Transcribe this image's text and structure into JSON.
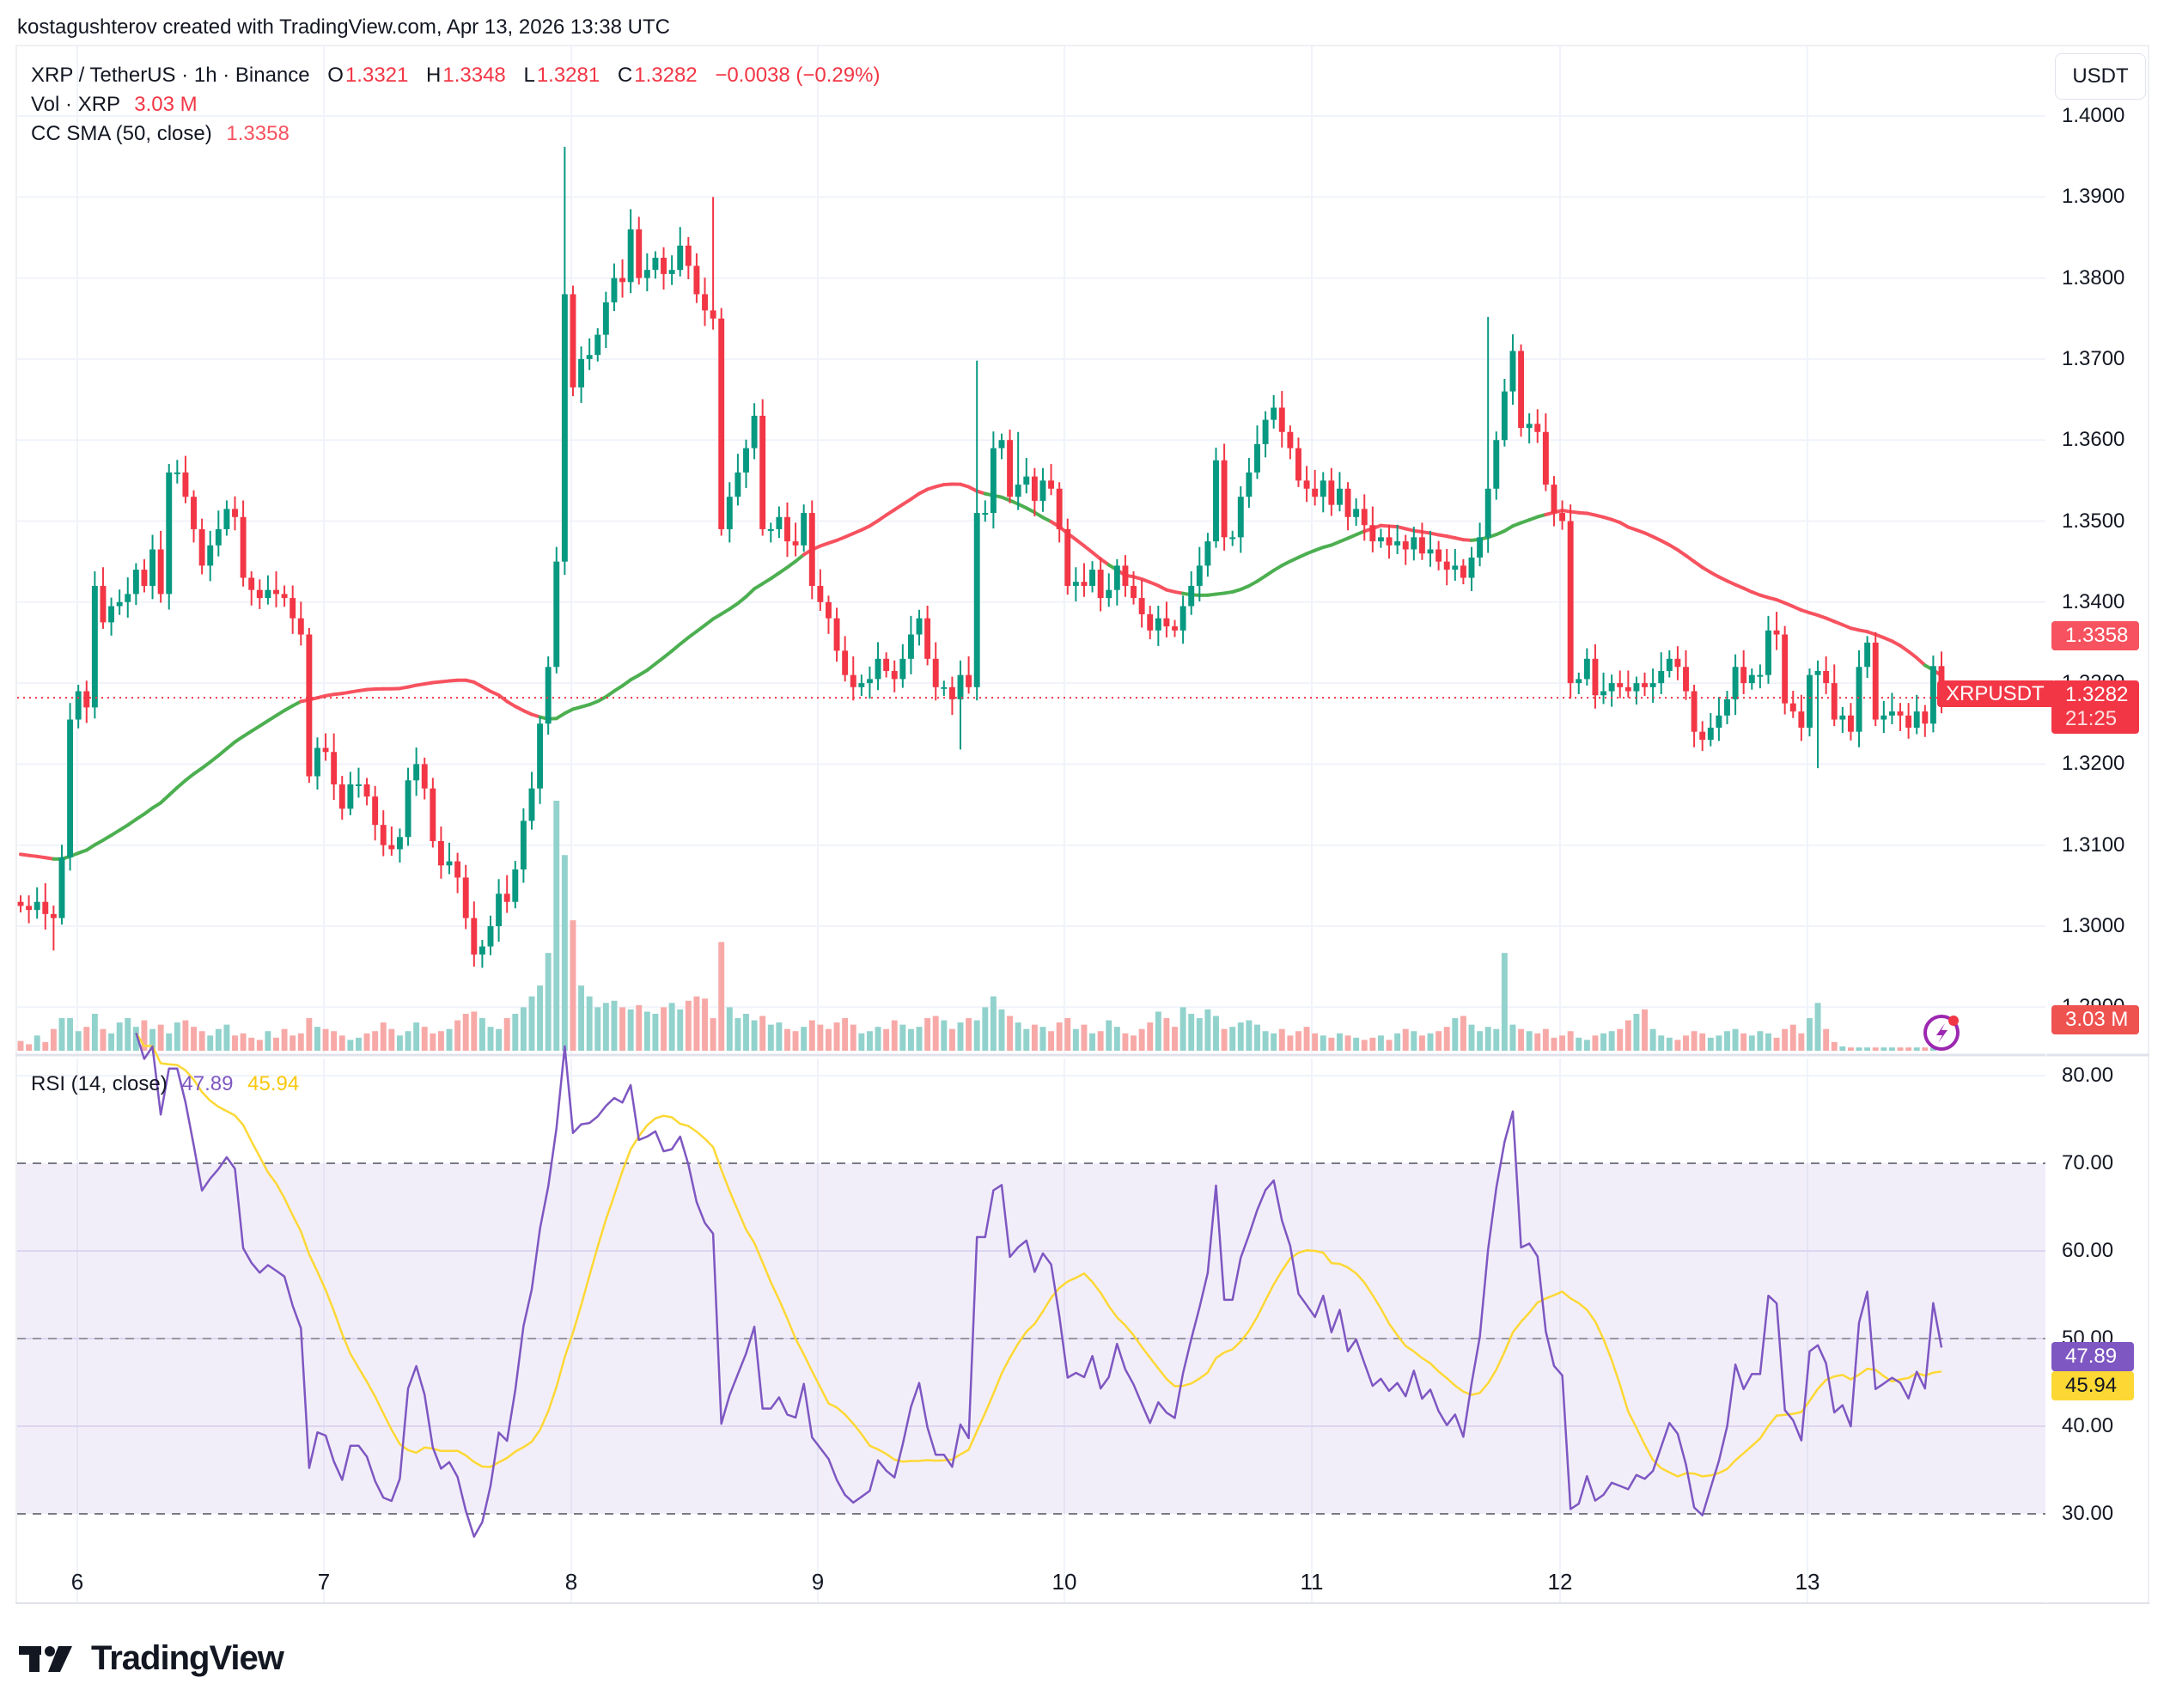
{
  "credit": "kostagushterov created with TradingView.com, Apr 13, 2026 13:38 UTC",
  "legend": {
    "symbol": "XRP / TetherUS · 1h · Binance",
    "o_label": "O",
    "o": "1.3321",
    "h_label": "H",
    "h": "1.3348",
    "l_label": "L",
    "l": "1.3281",
    "c_label": "C",
    "c": "1.3282",
    "change": "−0.0038 (−0.29%)",
    "vol_label": "Vol · XRP",
    "vol": "3.03 M",
    "sma_label": "CC SMA (50, close)",
    "sma": "1.3358",
    "rsi_label": "RSI (14, close)",
    "rsi": "47.89",
    "rsi_ma": "45.94"
  },
  "currency_button": "USDT",
  "price_axis": [
    "1.4000",
    "1.3900",
    "1.3800",
    "1.3700",
    "1.3600",
    "1.3500",
    "1.3400",
    "1.3300",
    "1.3200",
    "1.3100",
    "1.3000",
    "1.2900"
  ],
  "rsi_axis": [
    "80.00",
    "70.00",
    "60.00",
    "50.00",
    "40.00",
    "30.00"
  ],
  "tags": {
    "sma": "1.3358",
    "symbol": "XRPUSDT",
    "last_price": "1.3282",
    "countdown": "21:25",
    "volume": "3.03 M",
    "rsi": "47.89",
    "rsi_ma": "45.94"
  },
  "time_axis": [
    "6",
    "7",
    "8",
    "9",
    "10",
    "11",
    "12",
    "13"
  ],
  "logo_text": "TradingView",
  "colors": {
    "up": "#089981",
    "down": "#f23645",
    "vol_up": "#92d2cc",
    "vol_down": "#f7a9a7",
    "sma_bull": "#4caf50",
    "sma_bear": "#f7525f",
    "rsi": "#7e57c2",
    "rsi_ma": "#fdd835",
    "rsi_band": "#7e57c2"
  },
  "chart_data": {
    "type": "candlestick",
    "title": "XRP / TetherUS · 1h · Binance",
    "ylabel": "USDT",
    "ylim": [
      1.2885,
      1.4015
    ],
    "x_ticks": [
      "6",
      "7",
      "8",
      "9",
      "10",
      "11",
      "12",
      "13"
    ],
    "grid": true,
    "first_open": 1.303,
    "closes": [
      1.3025,
      1.302,
      1.303,
      1.3015,
      1.301,
      1.3085,
      1.3255,
      1.329,
      1.327,
      1.342,
      1.3375,
      1.3395,
      1.34,
      1.341,
      1.344,
      1.342,
      1.3465,
      1.341,
      1.356,
      1.356,
      1.353,
      1.349,
      1.3445,
      1.347,
      1.349,
      1.3515,
      1.3505,
      1.343,
      1.3415,
      1.3405,
      1.3415,
      1.341,
      1.3405,
      1.338,
      1.336,
      1.3185,
      1.322,
      1.3215,
      1.3175,
      1.3145,
      1.3175,
      1.3175,
      1.316,
      1.3125,
      1.31,
      1.3095,
      1.311,
      1.318,
      1.32,
      1.317,
      1.3105,
      1.3075,
      1.308,
      1.306,
      1.301,
      1.2965,
      1.2975,
      1.3,
      1.304,
      1.303,
      1.307,
      1.313,
      1.317,
      1.325,
      1.332,
      1.345,
      1.378,
      1.3665,
      1.37,
      1.3705,
      1.373,
      1.377,
      1.38,
      1.3795,
      1.386,
      1.38,
      1.381,
      1.3825,
      1.3805,
      1.381,
      1.384,
      1.3815,
      1.378,
      1.376,
      1.375,
      1.349,
      1.353,
      1.356,
      1.359,
      1.363,
      1.349,
      1.349,
      1.3505,
      1.3475,
      1.347,
      1.351,
      1.342,
      1.34,
      1.338,
      1.334,
      1.331,
      1.3295,
      1.33,
      1.3305,
      1.333,
      1.3315,
      1.3305,
      1.333,
      1.336,
      1.338,
      1.333,
      1.3295,
      1.3295,
      1.328,
      1.331,
      1.3295,
      1.351,
      1.351,
      1.359,
      1.36,
      1.353,
      1.3545,
      1.3555,
      1.3525,
      1.355,
      1.354,
      1.349,
      1.342,
      1.3425,
      1.342,
      1.344,
      1.3405,
      1.3415,
      1.3445,
      1.342,
      1.3405,
      1.3385,
      1.3365,
      1.338,
      1.337,
      1.3365,
      1.3395,
      1.342,
      1.3445,
      1.3475,
      1.3575,
      1.348,
      1.348,
      1.353,
      1.356,
      1.3595,
      1.3625,
      1.364,
      1.361,
      1.359,
      1.355,
      1.354,
      1.353,
      1.355,
      1.352,
      1.354,
      1.3505,
      1.3515,
      1.3495,
      1.3475,
      1.348,
      1.347,
      1.3475,
      1.3465,
      1.348,
      1.346,
      1.3465,
      1.345,
      1.344,
      1.3445,
      1.343,
      1.3455,
      1.348,
      1.354,
      1.36,
      1.366,
      1.371,
      1.3615,
      1.362,
      1.361,
      1.3545,
      1.351,
      1.35,
      1.33,
      1.3305,
      1.333,
      1.3285,
      1.329,
      1.33,
      1.3295,
      1.329,
      1.33,
      1.3295,
      1.33,
      1.3315,
      1.333,
      1.332,
      1.329,
      1.324,
      1.323,
      1.3245,
      1.326,
      1.328,
      1.332,
      1.33,
      1.331,
      1.331,
      1.3365,
      1.336,
      1.3275,
      1.3265,
      1.3245,
      1.331,
      1.3315,
      1.33,
      1.3255,
      1.326,
      1.324,
      1.332,
      1.335,
      1.3255,
      1.326,
      1.3265,
      1.326,
      1.3245,
      1.3265,
      1.325,
      1.3321,
      1.3282
    ],
    "spike_highs": {
      "66": 1.3962,
      "74": 1.3885,
      "84": 1.39,
      "116": 1.3698,
      "178": 1.3752,
      "121": 1.361
    },
    "spike_lows": {
      "4": 1.297,
      "55": 1.295,
      "114": 1.3218,
      "218": 1.3195,
      "236": 1.3195
    },
    "volumes_m": [
      9,
      6,
      14,
      8,
      20,
      30,
      30,
      18,
      22,
      34,
      20,
      16,
      26,
      30,
      22,
      28,
      20,
      24,
      16,
      26,
      28,
      22,
      18,
      14,
      20,
      24,
      14,
      16,
      12,
      10,
      18,
      12,
      20,
      14,
      16,
      30,
      22,
      20,
      18,
      14,
      10,
      12,
      16,
      18,
      26,
      20,
      14,
      18,
      26,
      22,
      16,
      18,
      20,
      28,
      34,
      36,
      30,
      22,
      20,
      30,
      34,
      40,
      50,
      60,
      90,
      230,
      180,
      120,
      60,
      50,
      40,
      44,
      46,
      40,
      38,
      42,
      36,
      34,
      40,
      44,
      38,
      46,
      50,
      48,
      30,
      100,
      40,
      30,
      34,
      28,
      32,
      24,
      26,
      20,
      18,
      22,
      28,
      24,
      20,
      26,
      30,
      24,
      16,
      18,
      22,
      20,
      28,
      24,
      20,
      22,
      30,
      32,
      28,
      20,
      26,
      30,
      28,
      40,
      50,
      38,
      32,
      26,
      20,
      24,
      22,
      18,
      26,
      30,
      20,
      24,
      16,
      18,
      28,
      22,
      16,
      14,
      20,
      26,
      36,
      30,
      22,
      40,
      34,
      30,
      38,
      32,
      20,
      22,
      26,
      28,
      24,
      18,
      16,
      20,
      14,
      18,
      22,
      16,
      14,
      12,
      16,
      14,
      12,
      10,
      12,
      14,
      10,
      16,
      20,
      18,
      14,
      16,
      18,
      22,
      30,
      32,
      24,
      18,
      22,
      20,
      90,
      24,
      20,
      18,
      16,
      20,
      12,
      14,
      18,
      12,
      10,
      14,
      16,
      18,
      20,
      28,
      34,
      38,
      20,
      14,
      12,
      10,
      14,
      18,
      16,
      12,
      14,
      18,
      20,
      16,
      14,
      18,
      16,
      12,
      20,
      24,
      16,
      30,
      44,
      20,
      8,
      4,
      3.03
    ]
  }
}
